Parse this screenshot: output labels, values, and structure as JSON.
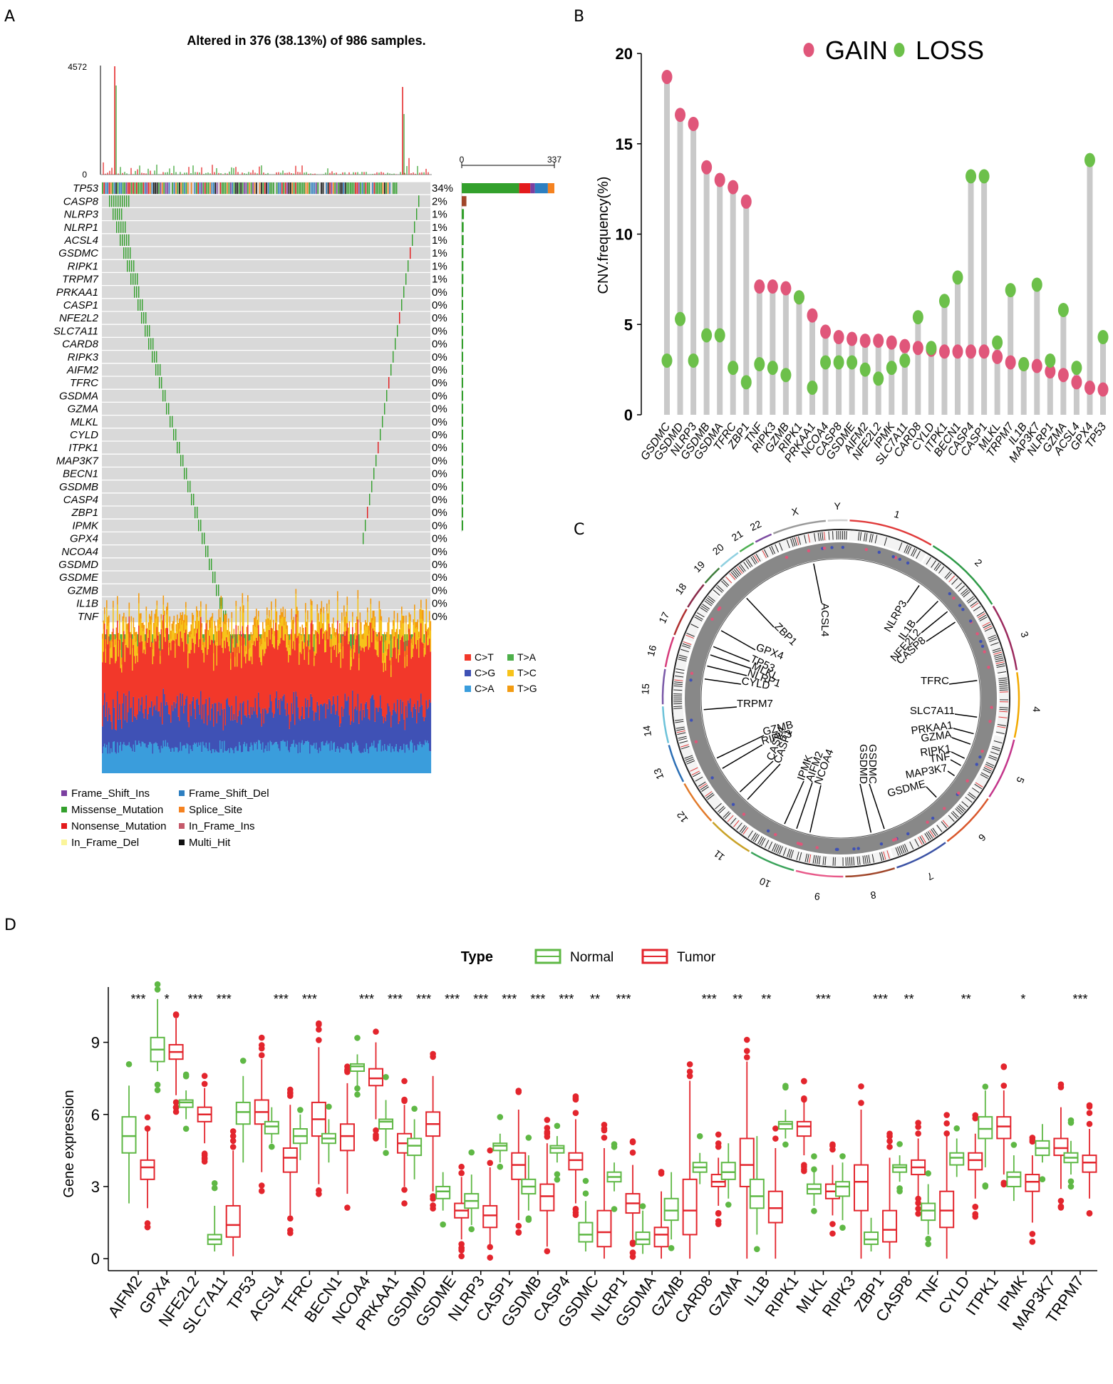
{
  "panels": {
    "a": "A",
    "b": "B",
    "c": "C",
    "d": "D"
  },
  "chart_data": [
    {
      "type": "oncoplot",
      "title": "Altered in 376 (38.13%) of 986 samples.",
      "tmb_axis": {
        "max_label": "4572",
        "min_label": "0"
      },
      "bar_axis": {
        "min_label": "0",
        "max_label": "337"
      },
      "genes": [
        "TP53",
        "CASP8",
        "NLRP3",
        "NLRP1",
        "ACSL4",
        "GSDMC",
        "RIPK1",
        "TRPM7",
        "PRKAA1",
        "CASP1",
        "NFE2L2",
        "SLC7A11",
        "CARD8",
        "RIPK3",
        "AIFM2",
        "TFRC",
        "GSDMA",
        "GZMA",
        "MLKL",
        "CYLD",
        "ITPK1",
        "MAP3K7",
        "BECN1",
        "GSDMB",
        "CASP4",
        "ZBP1",
        "IPMK",
        "GPX4",
        "NCOA4",
        "GSDMD",
        "GSDME",
        "GZMB",
        "IL1B",
        "TNF"
      ],
      "percents": [
        "34%",
        "2%",
        "1%",
        "1%",
        "1%",
        "1%",
        "1%",
        "1%",
        "0%",
        "0%",
        "0%",
        "0%",
        "0%",
        "0%",
        "0%",
        "0%",
        "0%",
        "0%",
        "0%",
        "0%",
        "0%",
        "0%",
        "0%",
        "0%",
        "0%",
        "0%",
        "0%",
        "0%",
        "0%",
        "0%",
        "0%",
        "0%",
        "0%",
        "0%"
      ],
      "counts": [
        337,
        17,
        8,
        7,
        7,
        6,
        6,
        6,
        4,
        3,
        3,
        3,
        3,
        3,
        3,
        2,
        2,
        2,
        2,
        2,
        2,
        2,
        2,
        1,
        1,
        1,
        1,
        0,
        0,
        0,
        0,
        0,
        0,
        0
      ],
      "tp53_split": [
        {
          "name": "Missense_Mutation",
          "value": 0.62
        },
        {
          "name": "Nonsense_Mutation",
          "value": 0.12
        },
        {
          "name": "Frame_Shift_Ins",
          "value": 0.05
        },
        {
          "name": "Frame_Shift_Del",
          "value": 0.14
        },
        {
          "name": "Splice_Site",
          "value": 0.07
        }
      ],
      "titv_legend": [
        {
          "label": "C>T",
          "color": "#f2382a"
        },
        {
          "label": "T>A",
          "color": "#4daf4a"
        },
        {
          "label": "C>G",
          "color": "#3f51b5"
        },
        {
          "label": "T>C",
          "color": "#f7c31a"
        },
        {
          "label": "C>A",
          "color": "#3a9ddc"
        },
        {
          "label": "T>G",
          "color": "#f39c12"
        }
      ],
      "variant_legend": [
        {
          "label": "Frame_Shift_Ins",
          "color": "#7b3fa0"
        },
        {
          "label": "Frame_Shift_Del",
          "color": "#2d7fc1"
        },
        {
          "label": "Missense_Mutation",
          "color": "#33a02c"
        },
        {
          "label": "Splice_Site",
          "color": "#f58220"
        },
        {
          "label": "Nonsense_Mutation",
          "color": "#e31a1c"
        },
        {
          "label": "In_Frame_Ins",
          "color": "#c55a6b"
        },
        {
          "label": "In_Frame_Del",
          "color": "#fbf59a"
        },
        {
          "label": "Multi_Hit",
          "color": "#111111"
        }
      ]
    },
    {
      "type": "lollipop",
      "ylabel": "CNV.frequency(%)",
      "ylim": [
        0,
        20
      ],
      "yticks": [
        "0",
        "5",
        "10",
        "15",
        "20"
      ],
      "legend": [
        {
          "label": "GAIN",
          "color": "#e0567a"
        },
        {
          "label": "LOSS",
          "color": "#6cc04a"
        }
      ],
      "categories": [
        "GSDMC",
        "GSDMD",
        "NLRP3",
        "GSDMB",
        "GSDMA",
        "TFRC",
        "ZBP1",
        "TNF",
        "RIPK3",
        "GZMB",
        "RIPK1",
        "PRKAA1",
        "NCOA4",
        "CASP8",
        "GSDME",
        "AIFM2",
        "NFE2L2",
        "IPMK",
        "SLC7A11",
        "CARD8",
        "CYLD",
        "ITPK1",
        "BECN1",
        "CASP4",
        "CASP1",
        "MLKL",
        "TRPM7",
        "IL1B",
        "MAP3K7",
        "NLRP1",
        "GZMA",
        "ACSL4",
        "GPX4",
        "TP53"
      ],
      "gain": [
        18.7,
        16.6,
        16.1,
        13.7,
        13.0,
        12.6,
        11.8,
        7.1,
        7.1,
        7.0,
        6.5,
        5.5,
        4.6,
        4.3,
        4.2,
        4.1,
        4.1,
        4.0,
        3.8,
        3.7,
        3.6,
        3.5,
        3.5,
        3.5,
        3.5,
        3.2,
        2.9,
        2.8,
        2.7,
        2.4,
        2.2,
        1.8,
        1.5,
        1.4
      ],
      "loss": [
        3.0,
        5.3,
        3.0,
        4.4,
        4.4,
        2.6,
        1.8,
        2.8,
        2.6,
        2.2,
        6.5,
        1.5,
        2.9,
        2.9,
        2.9,
        2.5,
        2.0,
        2.6,
        3.0,
        5.4,
        3.7,
        6.3,
        7.6,
        13.2,
        13.2,
        4.0,
        6.9,
        2.8,
        7.2,
        3.0,
        5.8,
        2.6,
        14.1,
        4.3
      ]
    },
    {
      "type": "circos",
      "chromosomes": [
        "1",
        "2",
        "3",
        "4",
        "5",
        "6",
        "7",
        "8",
        "9",
        "10",
        "11",
        "12",
        "13",
        "14",
        "15",
        "16",
        "17",
        "18",
        "19",
        "20",
        "21",
        "22",
        "X",
        "Y"
      ],
      "chrom_colors": [
        "#e03a3a",
        "#2e9a47",
        "#9b2a5e",
        "#f2a900",
        "#c4368b",
        "#d9572b",
        "#3b52a5",
        "#a0462a",
        "#e85a8a",
        "#3aa35a",
        "#c9a227",
        "#e27a2a",
        "#2c6fb5",
        "#6cc2d9",
        "#7a59a8",
        "#d63a7a",
        "#b03030",
        "#8a2a4a",
        "#3d7d3a",
        "#8fd0e0",
        "#4caf50",
        "#7b4aa0",
        "#9a9a9a",
        "#cfcfcf"
      ],
      "labels": [
        {
          "text": "ACSL4",
          "color": "#000"
        },
        {
          "text": "NLRP3",
          "color": "#000"
        },
        {
          "text": "IL1B",
          "color": "#000"
        },
        {
          "text": "NFE2L2",
          "color": "#000"
        },
        {
          "text": "CASP8",
          "color": "#000"
        },
        {
          "text": "TFRC",
          "color": "#000"
        },
        {
          "text": "SLC7A11",
          "color": "#000"
        },
        {
          "text": "PRKAA1",
          "color": "#000"
        },
        {
          "text": "GZMA",
          "color": "#000"
        },
        {
          "text": "RIPK1",
          "color": "#000"
        },
        {
          "text": "TNF",
          "color": "#000"
        },
        {
          "text": "MAP3K7",
          "color": "#000"
        },
        {
          "text": "GSDME",
          "color": "#000"
        },
        {
          "text": "GSDMC",
          "color": "#000"
        },
        {
          "text": "GSDMD",
          "color": "#000"
        },
        {
          "text": "NCOA4",
          "color": "#000"
        },
        {
          "text": "AIFM2",
          "color": "#000"
        },
        {
          "text": "IPMK",
          "color": "#000"
        },
        {
          "text": "CASP1",
          "color": "#000"
        },
        {
          "text": "CASP4",
          "color": "#000"
        },
        {
          "text": "RIPK3",
          "color": "#000"
        },
        {
          "text": "GZMB",
          "color": "#000"
        },
        {
          "text": "TRPM7",
          "color": "#000"
        },
        {
          "text": "CYLD",
          "color": "#000"
        },
        {
          "text": "NLRP1",
          "color": "#000"
        },
        {
          "text": "MLKL",
          "color": "#000"
        },
        {
          "text": "TP53",
          "color": "#000"
        },
        {
          "text": "GPX4",
          "color": "#000"
        },
        {
          "text": "ZBP1",
          "color": "#000"
        }
      ]
    },
    {
      "type": "boxplot",
      "legend_title": "Type",
      "legend": [
        {
          "label": "Normal",
          "color": "#5fb845"
        },
        {
          "label": "Tumor",
          "color": "#e3252d"
        }
      ],
      "ylabel": "Gene expression",
      "ylim": [
        -0.5,
        11.3
      ],
      "yticks": [
        "0",
        "3",
        "6",
        "9"
      ],
      "categories": [
        "AIFM2",
        "GPX4",
        "NFE2L2",
        "SLC7A11",
        "TP53",
        "ACSL4",
        "TFRC",
        "BECN1",
        "NCOA4",
        "PRKAA1",
        "GSDMD",
        "GSDME",
        "NLRP3",
        "CASP1",
        "GSDMB",
        "CASP4",
        "GSDMC",
        "NLRP1",
        "GSDMA",
        "GZMB",
        "CARD8",
        "GZMA",
        "IL1B",
        "RIPK1",
        "MLKL",
        "RIPK3",
        "ZBP1",
        "CASP8",
        "TNF",
        "CYLD",
        "ITPK1",
        "IPMK",
        "MAP3K7",
        "TRPM7"
      ],
      "significance": [
        "***",
        "*",
        "***",
        "***",
        "",
        "***",
        "***",
        "",
        "***",
        "***",
        "***",
        "***",
        "***",
        "***",
        "***",
        "***",
        "**",
        "***",
        "",
        "",
        "***",
        "**",
        "**",
        "",
        "***",
        "",
        "***",
        "**",
        "",
        "**",
        "",
        "*",
        "",
        "***"
      ],
      "normal": [
        [
          2.3,
          4.4,
          5.1,
          5.9,
          7.2
        ],
        [
          7.8,
          8.2,
          8.7,
          9.2,
          10.8
        ],
        [
          5.8,
          6.3,
          6.5,
          6.6,
          7.0
        ],
        [
          0.3,
          0.6,
          0.8,
          1.0,
          2.2
        ],
        [
          4.0,
          5.6,
          6.1,
          6.5,
          7.6
        ],
        [
          4.8,
          5.2,
          5.5,
          5.7,
          6.3
        ],
        [
          4.1,
          4.8,
          5.1,
          5.4,
          6.0
        ],
        [
          4.0,
          4.8,
          5.0,
          5.2,
          5.8
        ],
        [
          7.2,
          7.8,
          8.0,
          8.1,
          8.5
        ],
        [
          4.6,
          5.4,
          5.7,
          5.8,
          6.6
        ],
        [
          3.3,
          4.3,
          4.7,
          5.0,
          5.8
        ],
        [
          2.0,
          2.5,
          2.8,
          3.0,
          3.6
        ],
        [
          1.4,
          2.1,
          2.4,
          2.7,
          3.5
        ],
        [
          4.0,
          4.5,
          4.7,
          4.8,
          5.2
        ],
        [
          2.0,
          2.7,
          3.0,
          3.3,
          4.3
        ],
        [
          4.0,
          4.4,
          4.6,
          4.7,
          5.1
        ],
        [
          0.3,
          0.7,
          1.0,
          1.5,
          2.4
        ],
        [
          2.8,
          3.2,
          3.4,
          3.6,
          4.0
        ],
        [
          0.2,
          0.6,
          0.8,
          1.1,
          2.0
        ],
        [
          0.8,
          1.6,
          2.0,
          2.5,
          3.6
        ],
        [
          3.1,
          3.6,
          3.8,
          4.0,
          4.4
        ],
        [
          2.5,
          3.3,
          3.6,
          4.0,
          4.8
        ],
        [
          1.0,
          2.1,
          2.6,
          3.3,
          5.1
        ],
        [
          5.0,
          5.4,
          5.6,
          5.7,
          6.2
        ],
        [
          2.2,
          2.7,
          2.9,
          3.1,
          3.6
        ],
        [
          1.6,
          2.6,
          3.0,
          3.2,
          4.0
        ],
        [
          0.3,
          0.6,
          0.8,
          1.1,
          1.7
        ],
        [
          3.2,
          3.6,
          3.8,
          3.9,
          4.3
        ],
        [
          1.0,
          1.6,
          2.0,
          2.3,
          3.1
        ],
        [
          3.4,
          3.9,
          4.2,
          4.4,
          5.0
        ],
        [
          3.8,
          5.0,
          5.4,
          5.9,
          7.0
        ],
        [
          2.4,
          3.0,
          3.4,
          3.6,
          4.3
        ],
        [
          4.0,
          4.3,
          4.6,
          4.9,
          5.6
        ],
        [
          3.5,
          4.0,
          4.2,
          4.4,
          4.9
        ]
      ],
      "tumor": [
        [
          2.1,
          3.3,
          3.8,
          4.1,
          5.3
        ],
        [
          6.8,
          8.3,
          8.6,
          8.9,
          10.0
        ],
        [
          4.8,
          5.7,
          6.0,
          6.3,
          7.1
        ],
        [
          0.1,
          0.9,
          1.4,
          2.2,
          4.5
        ],
        [
          3.6,
          5.6,
          6.1,
          6.6,
          8.3
        ],
        [
          1.8,
          3.6,
          4.2,
          4.6,
          6.4
        ],
        [
          3.1,
          5.1,
          5.8,
          6.5,
          8.8
        ],
        [
          2.7,
          4.5,
          5.1,
          5.6,
          7.3
        ],
        [
          5.8,
          7.2,
          7.5,
          7.9,
          9.0
        ],
        [
          3.0,
          4.4,
          4.8,
          5.2,
          6.4
        ],
        [
          2.8,
          5.1,
          5.6,
          6.1,
          7.6
        ],
        [
          0.8,
          1.7,
          2.0,
          2.3,
          3.4
        ],
        [
          0.6,
          1.3,
          1.8,
          2.2,
          3.8
        ],
        [
          1.6,
          3.3,
          3.9,
          4.4,
          6.2
        ],
        [
          0.5,
          2.0,
          2.6,
          3.1,
          4.8
        ],
        [
          2.3,
          3.7,
          4.1,
          4.4,
          5.8
        ],
        [
          0.0,
          0.5,
          1.1,
          2.0,
          4.6
        ],
        [
          0.8,
          1.9,
          2.3,
          2.7,
          3.9
        ],
        [
          0.0,
          0.5,
          1.0,
          1.3,
          2.8
        ],
        [
          0.0,
          1.0,
          2.0,
          3.3,
          7.4
        ],
        [
          2.2,
          3.0,
          3.2,
          3.5,
          4.2
        ],
        [
          0.0,
          3.0,
          3.9,
          5.0,
          8.2
        ],
        [
          0.0,
          1.5,
          2.1,
          2.8,
          4.6
        ],
        [
          4.3,
          5.1,
          5.5,
          5.7,
          6.5
        ],
        [
          1.8,
          2.5,
          2.8,
          3.1,
          3.9
        ],
        [
          0.0,
          2.0,
          3.2,
          3.9,
          6.2
        ],
        [
          0.0,
          0.7,
          1.2,
          2.0,
          4.2
        ],
        [
          2.6,
          3.5,
          3.8,
          4.1,
          5.0
        ],
        [
          0.0,
          1.3,
          2.0,
          2.8,
          5.1
        ],
        [
          2.5,
          3.7,
          4.1,
          4.4,
          5.2
        ],
        [
          3.5,
          5.0,
          5.5,
          5.9,
          7.0
        ],
        [
          1.5,
          2.8,
          3.2,
          3.5,
          4.3
        ],
        [
          2.9,
          4.3,
          4.6,
          5.0,
          6.3
        ],
        [
          2.5,
          3.6,
          4.0,
          4.3,
          5.4
        ]
      ]
    }
  ]
}
